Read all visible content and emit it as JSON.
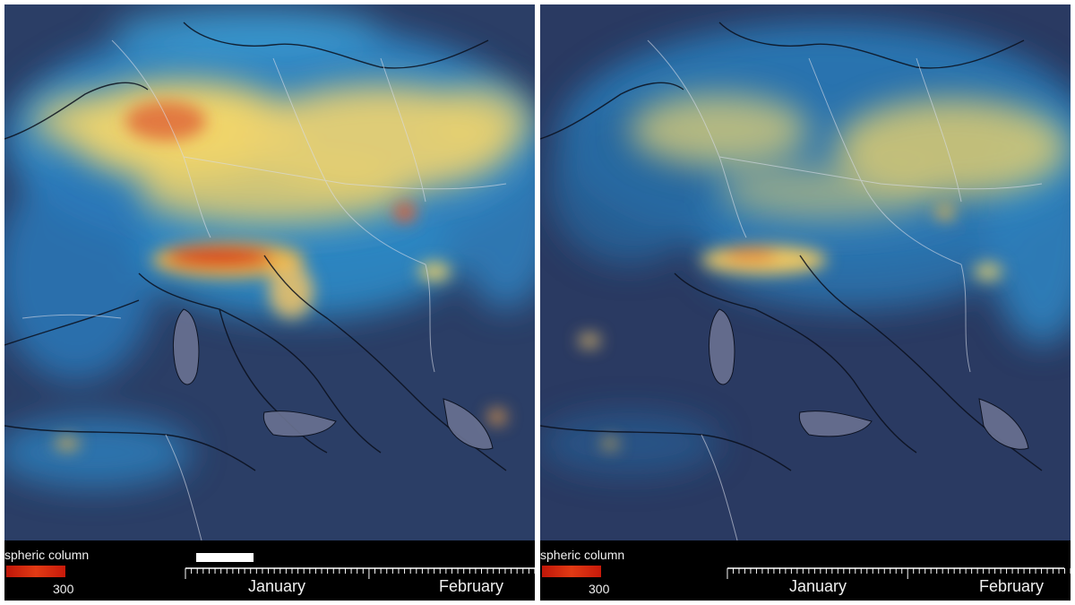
{
  "panels": [
    {
      "legend": {
        "title": "spheric column",
        "max_label": "300",
        "colorbar_colors": [
          "#c01608",
          "#e23a14"
        ]
      },
      "timeline": {
        "months": [
          "January",
          "February"
        ],
        "progress_visible": true
      }
    },
    {
      "legend": {
        "title": "spheric column",
        "max_label": "300",
        "colorbar_colors": [
          "#c01608",
          "#e23a14"
        ]
      },
      "timeline": {
        "months": [
          "January",
          "February"
        ],
        "progress_visible": false
      }
    }
  ],
  "colors": {
    "low": "#2a3c62",
    "mid": "#3aa0d8",
    "high": "#f2d66a",
    "peak": "#c8260e",
    "border_lines": "#d8dce8",
    "coastline": "#0a0f1c"
  }
}
